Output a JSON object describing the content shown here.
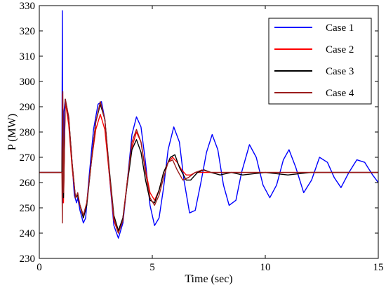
{
  "chart_data": {
    "type": "line",
    "title": "",
    "xlabel": "Time (sec)",
    "ylabel": "P (MW)",
    "xlim": [
      0,
      15
    ],
    "ylim": [
      230,
      330
    ],
    "xticks": [
      0,
      5,
      10,
      15
    ],
    "yticks": [
      230,
      240,
      250,
      260,
      270,
      280,
      290,
      300,
      310,
      320,
      330
    ],
    "grid": false,
    "legend_position": "top-right",
    "series": [
      {
        "name": "Case 1",
        "color": "#0000ff",
        "points": [
          [
            0,
            264
          ],
          [
            1.0,
            264
          ],
          [
            1.02,
            328
          ],
          [
            1.04,
            252
          ],
          [
            1.09,
            288
          ],
          [
            1.15,
            293
          ],
          [
            1.3,
            285
          ],
          [
            1.45,
            268
          ],
          [
            1.55,
            255
          ],
          [
            1.65,
            252
          ],
          [
            1.7,
            254
          ],
          [
            1.8,
            249
          ],
          [
            1.95,
            244
          ],
          [
            2.05,
            246
          ],
          [
            2.2,
            262
          ],
          [
            2.4,
            281
          ],
          [
            2.6,
            291
          ],
          [
            2.75,
            292
          ],
          [
            2.9,
            285
          ],
          [
            3.1,
            263
          ],
          [
            3.3,
            243
          ],
          [
            3.5,
            238
          ],
          [
            3.7,
            244
          ],
          [
            3.9,
            261
          ],
          [
            4.1,
            279
          ],
          [
            4.3,
            286
          ],
          [
            4.5,
            282
          ],
          [
            4.7,
            268
          ],
          [
            4.9,
            251
          ],
          [
            5.1,
            243
          ],
          [
            5.3,
            246
          ],
          [
            5.5,
            258
          ],
          [
            5.7,
            273
          ],
          [
            5.95,
            282
          ],
          [
            6.2,
            276
          ],
          [
            6.4,
            261
          ],
          [
            6.65,
            248
          ],
          [
            6.9,
            249
          ],
          [
            7.15,
            260
          ],
          [
            7.4,
            272
          ],
          [
            7.65,
            279
          ],
          [
            7.9,
            273
          ],
          [
            8.15,
            259
          ],
          [
            8.4,
            251
          ],
          [
            8.7,
            253
          ],
          [
            8.95,
            264
          ],
          [
            9.3,
            275
          ],
          [
            9.6,
            270
          ],
          [
            9.9,
            259
          ],
          [
            10.2,
            254
          ],
          [
            10.5,
            259
          ],
          [
            10.8,
            269
          ],
          [
            11.05,
            273
          ],
          [
            11.35,
            266
          ],
          [
            11.7,
            256
          ],
          [
            12.05,
            261
          ],
          [
            12.4,
            270
          ],
          [
            12.75,
            268
          ],
          [
            13.05,
            262
          ],
          [
            13.35,
            258
          ],
          [
            13.7,
            264
          ],
          [
            14.05,
            269
          ],
          [
            14.4,
            268
          ],
          [
            14.75,
            263
          ],
          [
            15,
            260
          ]
        ]
      },
      {
        "name": "Case 2",
        "color": "#ff0000",
        "points": [
          [
            0,
            264
          ],
          [
            1.0,
            264
          ],
          [
            1.03,
            295
          ],
          [
            1.07,
            252
          ],
          [
            1.15,
            292
          ],
          [
            1.3,
            283
          ],
          [
            1.45,
            266
          ],
          [
            1.6,
            254
          ],
          [
            1.7,
            255
          ],
          [
            1.8,
            251
          ],
          [
            1.95,
            247
          ],
          [
            2.1,
            252
          ],
          [
            2.3,
            268
          ],
          [
            2.5,
            281
          ],
          [
            2.7,
            287
          ],
          [
            2.9,
            281
          ],
          [
            3.1,
            263
          ],
          [
            3.3,
            245
          ],
          [
            3.5,
            240
          ],
          [
            3.7,
            246
          ],
          [
            3.9,
            261
          ],
          [
            4.1,
            274
          ],
          [
            4.3,
            280
          ],
          [
            4.5,
            276
          ],
          [
            4.7,
            265
          ],
          [
            4.9,
            256
          ],
          [
            5.1,
            253
          ],
          [
            5.3,
            257
          ],
          [
            5.5,
            264
          ],
          [
            5.7,
            268
          ],
          [
            5.9,
            270
          ],
          [
            6.1,
            268
          ],
          [
            6.3,
            265
          ],
          [
            6.5,
            263
          ],
          [
            6.7,
            263
          ],
          [
            6.9,
            264
          ],
          [
            7.2,
            264
          ],
          [
            7.6,
            264
          ],
          [
            8,
            264
          ],
          [
            9,
            264
          ],
          [
            10,
            264
          ],
          [
            11,
            264
          ],
          [
            12,
            264
          ],
          [
            13,
            264
          ],
          [
            14,
            264
          ],
          [
            15,
            264
          ]
        ]
      },
      {
        "name": "Case 3",
        "color": "#000000",
        "points": [
          [
            0,
            264
          ],
          [
            1.0,
            264
          ],
          [
            1.03,
            289
          ],
          [
            1.07,
            254
          ],
          [
            1.15,
            293
          ],
          [
            1.3,
            286
          ],
          [
            1.45,
            268
          ],
          [
            1.6,
            254
          ],
          [
            1.7,
            255
          ],
          [
            1.8,
            251
          ],
          [
            1.95,
            246
          ],
          [
            2.1,
            251
          ],
          [
            2.3,
            268
          ],
          [
            2.5,
            284
          ],
          [
            2.7,
            291
          ],
          [
            2.9,
            285
          ],
          [
            3.1,
            265
          ],
          [
            3.3,
            247
          ],
          [
            3.5,
            241
          ],
          [
            3.7,
            246
          ],
          [
            3.9,
            260
          ],
          [
            4.1,
            273
          ],
          [
            4.3,
            277
          ],
          [
            4.5,
            272
          ],
          [
            4.7,
            261
          ],
          [
            4.9,
            253
          ],
          [
            5.1,
            252
          ],
          [
            5.3,
            257
          ],
          [
            5.5,
            264
          ],
          [
            5.8,
            270
          ],
          [
            6.0,
            271
          ],
          [
            6.2,
            266
          ],
          [
            6.5,
            261
          ],
          [
            6.7,
            261
          ],
          [
            7.0,
            264
          ],
          [
            7.3,
            265
          ],
          [
            7.6,
            264
          ],
          [
            8.0,
            263
          ],
          [
            8.5,
            264
          ],
          [
            9,
            263
          ],
          [
            10,
            264
          ],
          [
            11,
            263
          ],
          [
            12,
            264
          ],
          [
            13,
            264
          ],
          [
            14,
            264
          ],
          [
            15,
            264
          ]
        ]
      },
      {
        "name": "Case 4",
        "color": "#9b1c1c",
        "points": [
          [
            0,
            264
          ],
          [
            1.0,
            264
          ],
          [
            1.02,
            244
          ],
          [
            1.04,
            296
          ],
          [
            1.08,
            256
          ],
          [
            1.15,
            293
          ],
          [
            1.3,
            286
          ],
          [
            1.45,
            268
          ],
          [
            1.6,
            254
          ],
          [
            1.7,
            256
          ],
          [
            1.8,
            251
          ],
          [
            1.95,
            247
          ],
          [
            2.1,
            252
          ],
          [
            2.3,
            268
          ],
          [
            2.5,
            284
          ],
          [
            2.7,
            292
          ],
          [
            2.9,
            285
          ],
          [
            3.1,
            264
          ],
          [
            3.3,
            246
          ],
          [
            3.5,
            240
          ],
          [
            3.7,
            245
          ],
          [
            3.9,
            261
          ],
          [
            4.1,
            276
          ],
          [
            4.3,
            281
          ],
          [
            4.5,
            276
          ],
          [
            4.7,
            264
          ],
          [
            4.9,
            254
          ],
          [
            5.1,
            251
          ],
          [
            5.3,
            255
          ],
          [
            5.5,
            262
          ],
          [
            5.7,
            268
          ],
          [
            5.9,
            269
          ],
          [
            6.1,
            265
          ],
          [
            6.35,
            261
          ],
          [
            6.6,
            262
          ],
          [
            6.9,
            264
          ],
          [
            7.2,
            265
          ],
          [
            7.6,
            264
          ],
          [
            8,
            264
          ],
          [
            9,
            264
          ],
          [
            10,
            264
          ],
          [
            11,
            264
          ],
          [
            12,
            264
          ],
          [
            13,
            264
          ],
          [
            14,
            264
          ],
          [
            15,
            264
          ]
        ]
      }
    ]
  }
}
